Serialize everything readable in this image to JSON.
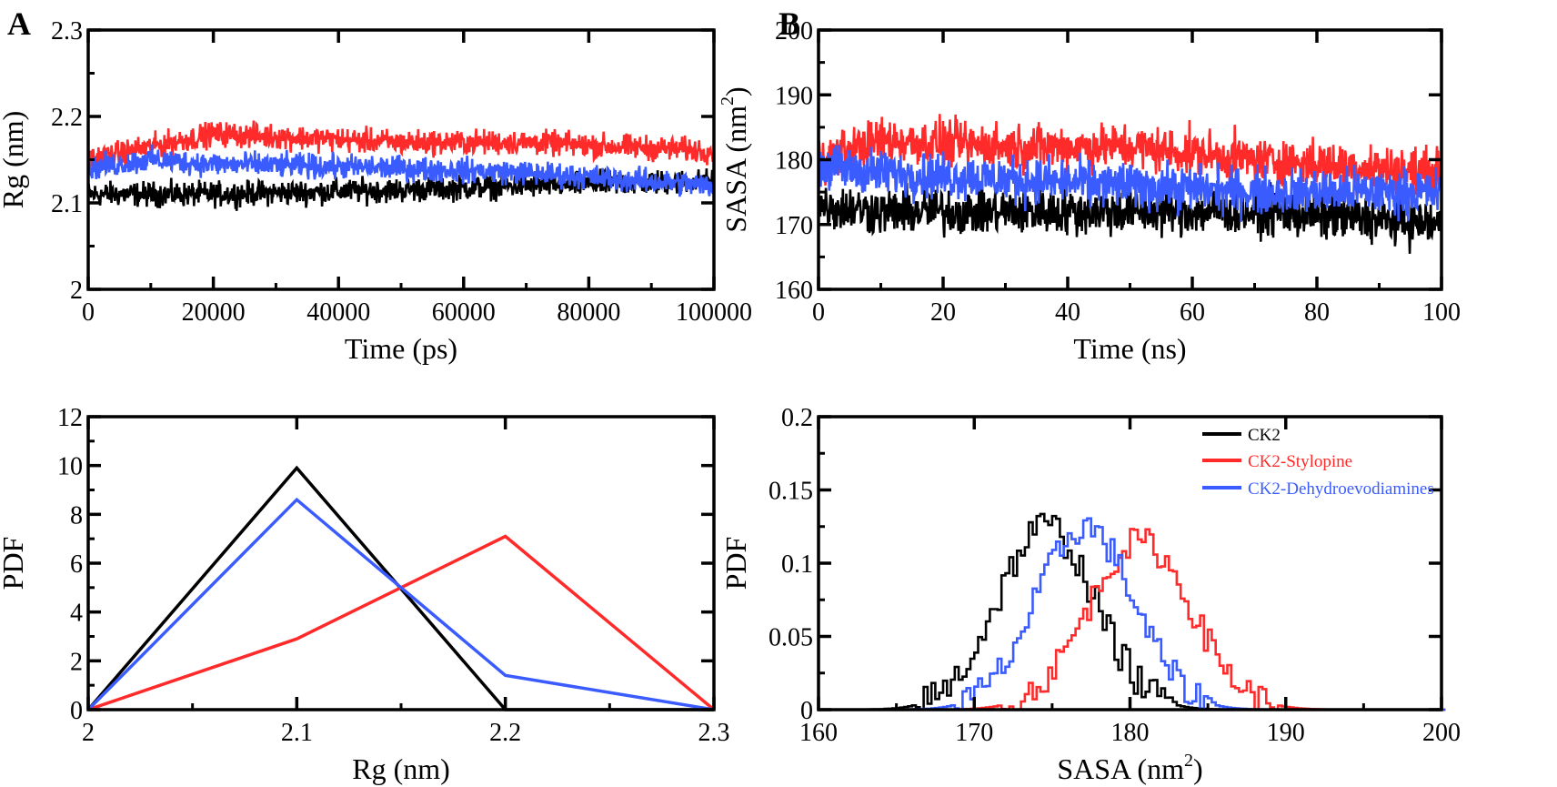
{
  "panels": {
    "A": "A",
    "B": "B"
  },
  "colors": {
    "ck2": "#000000",
    "stylopine": "#ff2a2a",
    "dehydro": "#3a5cff"
  },
  "legend": {
    "ck2": "CK2",
    "stylopine": "CK2-Stylopine",
    "dehydro": "CK2-Dehydroevodiamines"
  },
  "chart_data": [
    {
      "id": "rg_time",
      "type": "line",
      "xlabel": "Time (ps)",
      "ylabel": "Rg (nm)",
      "xlim": [
        0,
        100000
      ],
      "ylim": [
        2,
        2.3
      ],
      "xticks": [
        "0",
        "20000",
        "40000",
        "60000",
        "80000",
        "100000"
      ],
      "yticks": [
        "2",
        "2.1",
        "2.2",
        "2.3"
      ],
      "xtick_values": [
        0,
        20000,
        40000,
        60000,
        80000,
        100000
      ],
      "ytick_values": [
        2,
        2.1,
        2.2,
        2.3
      ],
      "series": [
        {
          "key": "ck2",
          "noise": 0.01,
          "trend": {
            "x": [
              0,
              10000,
              20000,
              50000,
              70000,
              100000
            ],
            "y": [
              2.11,
              2.11,
              2.11,
              2.115,
              2.12,
              2.125
            ]
          }
        },
        {
          "key": "stylopine",
          "noise": 0.01,
          "trend": {
            "x": [
              0,
              10000,
              20000,
              50000,
              70000,
              100000
            ],
            "y": [
              2.15,
              2.165,
              2.18,
              2.17,
              2.17,
              2.16
            ]
          }
        },
        {
          "key": "dehydro",
          "noise": 0.01,
          "trend": {
            "x": [
              0,
              10000,
              20000,
              50000,
              70000,
              100000
            ],
            "y": [
              2.14,
              2.15,
              2.145,
              2.14,
              2.135,
              2.12
            ]
          }
        }
      ]
    },
    {
      "id": "sasa_time",
      "type": "line",
      "xlabel": "Time (ns)",
      "ylabel": "SASA (nm",
      "ylabel_sup": "2",
      "ylabel_end": ")",
      "xlim": [
        0,
        100
      ],
      "ylim": [
        160,
        200
      ],
      "xticks": [
        "0",
        "20",
        "40",
        "60",
        "80",
        "100"
      ],
      "yticks": [
        "160",
        "170",
        "180",
        "190",
        "200"
      ],
      "xtick_values": [
        0,
        20,
        40,
        60,
        80,
        100
      ],
      "ytick_values": [
        160,
        170,
        180,
        190,
        200
      ],
      "series": [
        {
          "key": "ck2",
          "noise": 2.5,
          "trend": {
            "x": [
              0,
              10,
              30,
              50,
              70,
              100
            ],
            "y": [
              173,
              172,
              172,
              172,
              172,
              170
            ]
          }
        },
        {
          "key": "stylopine",
          "noise": 2.5,
          "trend": {
            "x": [
              0,
              10,
              30,
              50,
              70,
              100
            ],
            "y": [
              180,
              183,
              182,
              182,
              180,
              178
            ]
          }
        },
        {
          "key": "dehydro",
          "noise": 2.5,
          "trend": {
            "x": [
              0,
              10,
              30,
              50,
              70,
              100
            ],
            "y": [
              179,
              178,
              177,
              176,
              175,
              175
            ]
          }
        }
      ]
    },
    {
      "id": "rg_pdf",
      "type": "line",
      "xlabel": "Rg (nm)",
      "ylabel": "PDF",
      "xlim": [
        2,
        2.3
      ],
      "ylim": [
        0,
        12
      ],
      "xticks": [
        "2",
        "2.1",
        "2.2",
        "2.3"
      ],
      "yticks": [
        "0",
        "2",
        "4",
        "6",
        "8",
        "10",
        "12"
      ],
      "xtick_values": [
        2,
        2.1,
        2.2,
        2.3
      ],
      "ytick_values": [
        0,
        2,
        4,
        6,
        8,
        10,
        12
      ],
      "x": [
        2,
        2.1,
        2.2,
        2.3
      ],
      "series": [
        {
          "key": "ck2",
          "values": [
            0,
            9.9,
            0,
            0
          ]
        },
        {
          "key": "stylopine",
          "values": [
            0,
            2.9,
            7.1,
            0
          ]
        },
        {
          "key": "dehydro",
          "values": [
            0,
            8.6,
            1.4,
            0
          ]
        }
      ]
    },
    {
      "id": "sasa_pdf",
      "type": "line",
      "xlabel": "SASA (nm",
      "xlabel_sup": "2",
      "xlabel_end": ")",
      "ylabel": "PDF",
      "xlim": [
        160,
        200
      ],
      "ylim": [
        0,
        0.2
      ],
      "xticks": [
        "160",
        "170",
        "180",
        "190",
        "200"
      ],
      "yticks": [
        "0",
        "0.05",
        "0.1",
        "0.15",
        "0.2"
      ],
      "xtick_values": [
        160,
        170,
        180,
        190,
        200
      ],
      "ytick_values": [
        0,
        0.05,
        0.1,
        0.15,
        0.2
      ],
      "legend_position": "top-right",
      "series": [
        {
          "key": "ck2",
          "mean": 174.5,
          "sd": 3.1,
          "peak": 0.125,
          "noise": 0.012
        },
        {
          "key": "stylopine",
          "mean": 180.5,
          "sd": 3.3,
          "peak": 0.115,
          "noise": 0.01
        },
        {
          "key": "dehydro",
          "mean": 177,
          "sd": 3.1,
          "peak": 0.125,
          "noise": 0.011
        }
      ]
    }
  ]
}
